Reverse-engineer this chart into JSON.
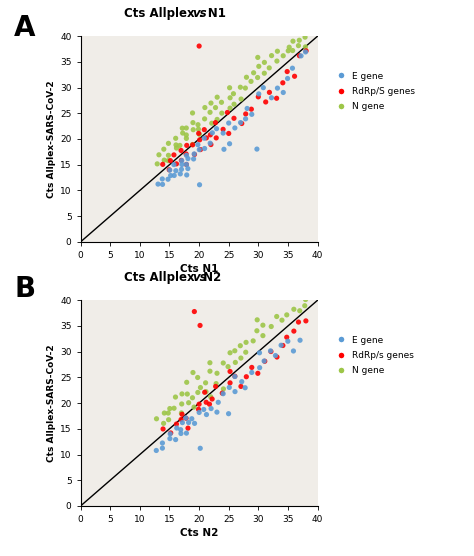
{
  "panel_A": {
    "title_normal": "Cts Allplex ",
    "title_italic": "vs",
    "title_normal2": ". N1",
    "xlabel": "Cts N1",
    "ylabel": "Cts Allplex-SARS-CoV-2",
    "xlim": [
      0,
      40
    ],
    "ylim": [
      0,
      40
    ],
    "xticks": [
      0,
      5,
      10,
      15,
      20,
      25,
      30,
      35,
      40
    ],
    "yticks": [
      0,
      5,
      10,
      15,
      20,
      25,
      30,
      35,
      40
    ],
    "E_gene_x": [
      13,
      14,
      14,
      15,
      15,
      15,
      16,
      16,
      16,
      17,
      17,
      17,
      17,
      18,
      18,
      18,
      18,
      18,
      19,
      19,
      20,
      20,
      20,
      21,
      21,
      22,
      22,
      23,
      24,
      24,
      25,
      25,
      26,
      27,
      28,
      28,
      29,
      30,
      30,
      31,
      32,
      33,
      34,
      35,
      36,
      37,
      38
    ],
    "E_gene_y": [
      11,
      12,
      11,
      13,
      14,
      12,
      13,
      14,
      15,
      13,
      14,
      15,
      16,
      15,
      14,
      17,
      13,
      16,
      16,
      17,
      11,
      18,
      19,
      18,
      20,
      19,
      21,
      22,
      18,
      21,
      19,
      23,
      22,
      23,
      24,
      26,
      25,
      18,
      29,
      30,
      28,
      30,
      29,
      32,
      34,
      36,
      37
    ],
    "RdRp_gene_x": [
      14,
      15,
      15,
      16,
      16,
      17,
      17,
      18,
      18,
      18,
      19,
      19,
      20,
      20,
      20,
      20,
      21,
      21,
      22,
      22,
      23,
      23,
      24,
      25,
      25,
      26,
      27,
      28,
      29,
      30,
      31,
      32,
      33,
      34,
      35,
      36,
      37,
      38
    ],
    "RdRp_gene_y": [
      15,
      14,
      16,
      15,
      17,
      16,
      18,
      15,
      17,
      19,
      17,
      19,
      38,
      20,
      21,
      18,
      20,
      22,
      19,
      21,
      20,
      23,
      22,
      21,
      25,
      24,
      23,
      25,
      26,
      28,
      27,
      29,
      28,
      31,
      33,
      32,
      36,
      37
    ],
    "N_gene_x": [
      13,
      13,
      14,
      14,
      15,
      15,
      15,
      16,
      16,
      16,
      17,
      17,
      17,
      18,
      18,
      18,
      19,
      19,
      19,
      19,
      20,
      20,
      20,
      21,
      21,
      22,
      22,
      22,
      23,
      23,
      23,
      24,
      24,
      25,
      25,
      25,
      26,
      26,
      27,
      27,
      28,
      28,
      29,
      29,
      30,
      30,
      30,
      31,
      31,
      32,
      32,
      33,
      33,
      34,
      35,
      35,
      36,
      36,
      37,
      37,
      38,
      38
    ],
    "N_gene_y": [
      15,
      17,
      16,
      18,
      17,
      19,
      16,
      18,
      20,
      19,
      19,
      21,
      22,
      20,
      22,
      21,
      19,
      22,
      23,
      25,
      21,
      23,
      22,
      24,
      26,
      23,
      25,
      27,
      24,
      26,
      28,
      25,
      27,
      26,
      28,
      30,
      27,
      29,
      28,
      30,
      30,
      32,
      31,
      33,
      32,
      34,
      36,
      33,
      35,
      34,
      36,
      35,
      37,
      36,
      37,
      38,
      37,
      39,
      38,
      39,
      38,
      40
    ]
  },
  "panel_B": {
    "title_normal": "Cts Allplex ",
    "title_italic": "vs",
    "title_normal2": " N2",
    "xlabel": "Cts N2",
    "ylabel": "Cts Allplex-SARS-CoV-2",
    "xlim": [
      0,
      40
    ],
    "ylim": [
      0,
      40
    ],
    "xticks": [
      0,
      5,
      10,
      15,
      20,
      25,
      30,
      35,
      40
    ],
    "yticks": [
      0,
      5,
      10,
      15,
      20,
      25,
      30,
      35,
      40
    ],
    "E_gene_x": [
      13,
      14,
      14,
      15,
      15,
      16,
      16,
      17,
      17,
      17,
      18,
      18,
      18,
      19,
      19,
      20,
      20,
      21,
      21,
      22,
      23,
      23,
      24,
      25,
      25,
      26,
      26,
      27,
      28,
      29,
      30,
      30,
      31,
      32,
      33,
      34,
      35,
      36,
      37
    ],
    "E_gene_y": [
      11,
      12,
      11,
      13,
      14,
      13,
      15,
      14,
      15,
      16,
      14,
      16,
      17,
      16,
      17,
      11,
      18,
      18,
      19,
      19,
      20,
      18,
      22,
      23,
      18,
      22,
      25,
      24,
      23,
      26,
      27,
      30,
      28,
      30,
      29,
      31,
      32,
      30,
      32
    ],
    "RdRp_gene_x": [
      14,
      15,
      16,
      17,
      17,
      18,
      18,
      19,
      20,
      20,
      20,
      21,
      21,
      22,
      22,
      23,
      24,
      25,
      25,
      26,
      27,
      28,
      29,
      30,
      31,
      32,
      33,
      34,
      35,
      36,
      37,
      38
    ],
    "RdRp_gene_y": [
      15,
      14,
      16,
      17,
      18,
      15,
      17,
      38,
      20,
      35,
      19,
      20,
      22,
      20,
      21,
      23,
      22,
      24,
      26,
      25,
      23,
      25,
      27,
      26,
      28,
      30,
      29,
      31,
      33,
      34,
      36,
      36
    ],
    "N_gene_x": [
      13,
      14,
      14,
      15,
      15,
      15,
      16,
      16,
      17,
      17,
      17,
      18,
      18,
      18,
      19,
      19,
      19,
      20,
      20,
      20,
      21,
      21,
      22,
      22,
      22,
      23,
      23,
      24,
      24,
      25,
      25,
      26,
      26,
      27,
      27,
      28,
      28,
      29,
      30,
      30,
      31,
      31,
      32,
      33,
      34,
      35,
      36,
      37,
      38,
      38
    ],
    "N_gene_y": [
      17,
      16,
      18,
      17,
      19,
      18,
      19,
      21,
      18,
      20,
      22,
      20,
      22,
      24,
      19,
      21,
      26,
      22,
      25,
      23,
      22,
      24,
      21,
      26,
      28,
      24,
      26,
      23,
      28,
      27,
      30,
      28,
      30,
      29,
      31,
      30,
      32,
      32,
      34,
      36,
      33,
      35,
      35,
      37,
      36,
      37,
      38,
      38,
      39,
      40
    ]
  },
  "color_E": "#5B9BD5",
  "color_RdRp": "#FF0000",
  "color_N": "#9DC648",
  "label_E_A": "E gene",
  "label_RdRp_A": "RdRp/S genes",
  "label_N_A": "N gene",
  "label_E_B": "E gene",
  "label_RdRp_B": "RdRp/s genes",
  "label_N_B": "N gene",
  "panel_label_A": "A",
  "panel_label_B": "B",
  "bg_color": "#ffffff",
  "plot_bg_color": "#f0ede8",
  "dot_size": 14,
  "dot_alpha": 0.9,
  "jitter_scale": 0.25
}
